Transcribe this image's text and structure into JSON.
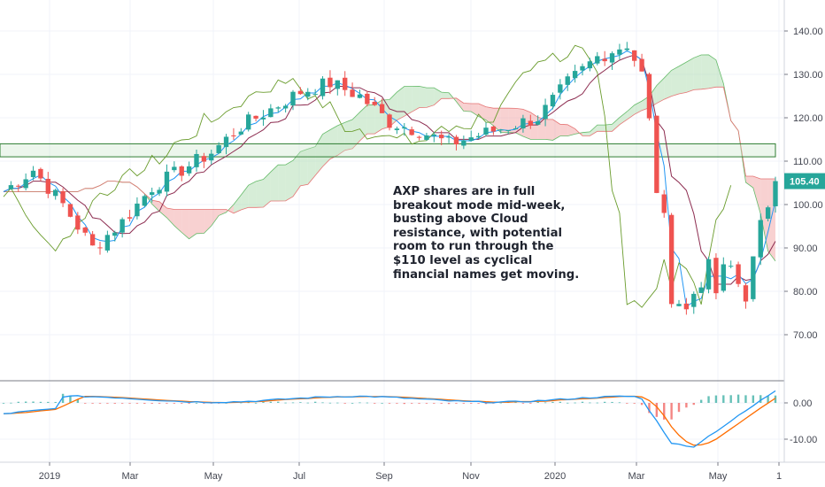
{
  "chart_data": [
    {
      "type": "candlestick",
      "ylim": [
        60,
        145
      ],
      "y_ticks": [
        "140.00",
        "130.00",
        "120.00",
        "110.00",
        "100.00",
        "90.00",
        "80.00",
        "70.00"
      ],
      "x_ticks": [
        "2019",
        "Mar",
        "May",
        "Jul",
        "Sep",
        "Nov",
        "2020",
        "Mar",
        "May",
        "1"
      ],
      "last_price": "105.40",
      "resistance_zone": [
        111,
        114
      ],
      "annotation": "AXP shares are in full\nbreakout mode mid-week,\nbusting above Cloud\nresistance, with potential\nroom to run through the\n$110 level as cyclical\nfinancial names get moving.",
      "price_path": [
        [
          0,
          103
        ],
        [
          4,
          108
        ],
        [
          8,
          100
        ],
        [
          12,
          90
        ],
        [
          16,
          96
        ],
        [
          20,
          104
        ],
        [
          24,
          108
        ],
        [
          28,
          112
        ],
        [
          32,
          118
        ],
        [
          36,
          122
        ],
        [
          40,
          126
        ],
        [
          44,
          128
        ],
        [
          48,
          125
        ],
        [
          52,
          119
        ],
        [
          56,
          117
        ],
        [
          60,
          114
        ],
        [
          64,
          116
        ],
        [
          68,
          118
        ],
        [
          72,
          120
        ],
        [
          76,
          128
        ],
        [
          80,
          134
        ],
        [
          84,
          137
        ],
        [
          86,
          130
        ],
        [
          88,
          105
        ],
        [
          90,
          82
        ],
        [
          92,
          75
        ],
        [
          94,
          85
        ],
        [
          96,
          80
        ],
        [
          98,
          85
        ],
        [
          100,
          79
        ],
        [
          102,
          95
        ],
        [
          104,
          105.4
        ]
      ],
      "colors": {
        "up": "#26a69a",
        "down": "#ef5350",
        "lagging": "#6a9c2d",
        "base": "#8c2b4f",
        "conversion": "#2196f3",
        "cloud_bull": "#a5d6a7",
        "cloud_bear": "#ef9a9a",
        "zone": "#2e7d32",
        "tag": "#26a69a"
      }
    },
    {
      "type": "macd",
      "ylim": [
        -15,
        8
      ],
      "y_ticks": [
        "0.00",
        "-10.00"
      ],
      "colors": {
        "macd": "#2196f3",
        "signal": "#ff6d00",
        "hist_up": "#26a69a",
        "hist_down": "#ef5350"
      }
    }
  ]
}
